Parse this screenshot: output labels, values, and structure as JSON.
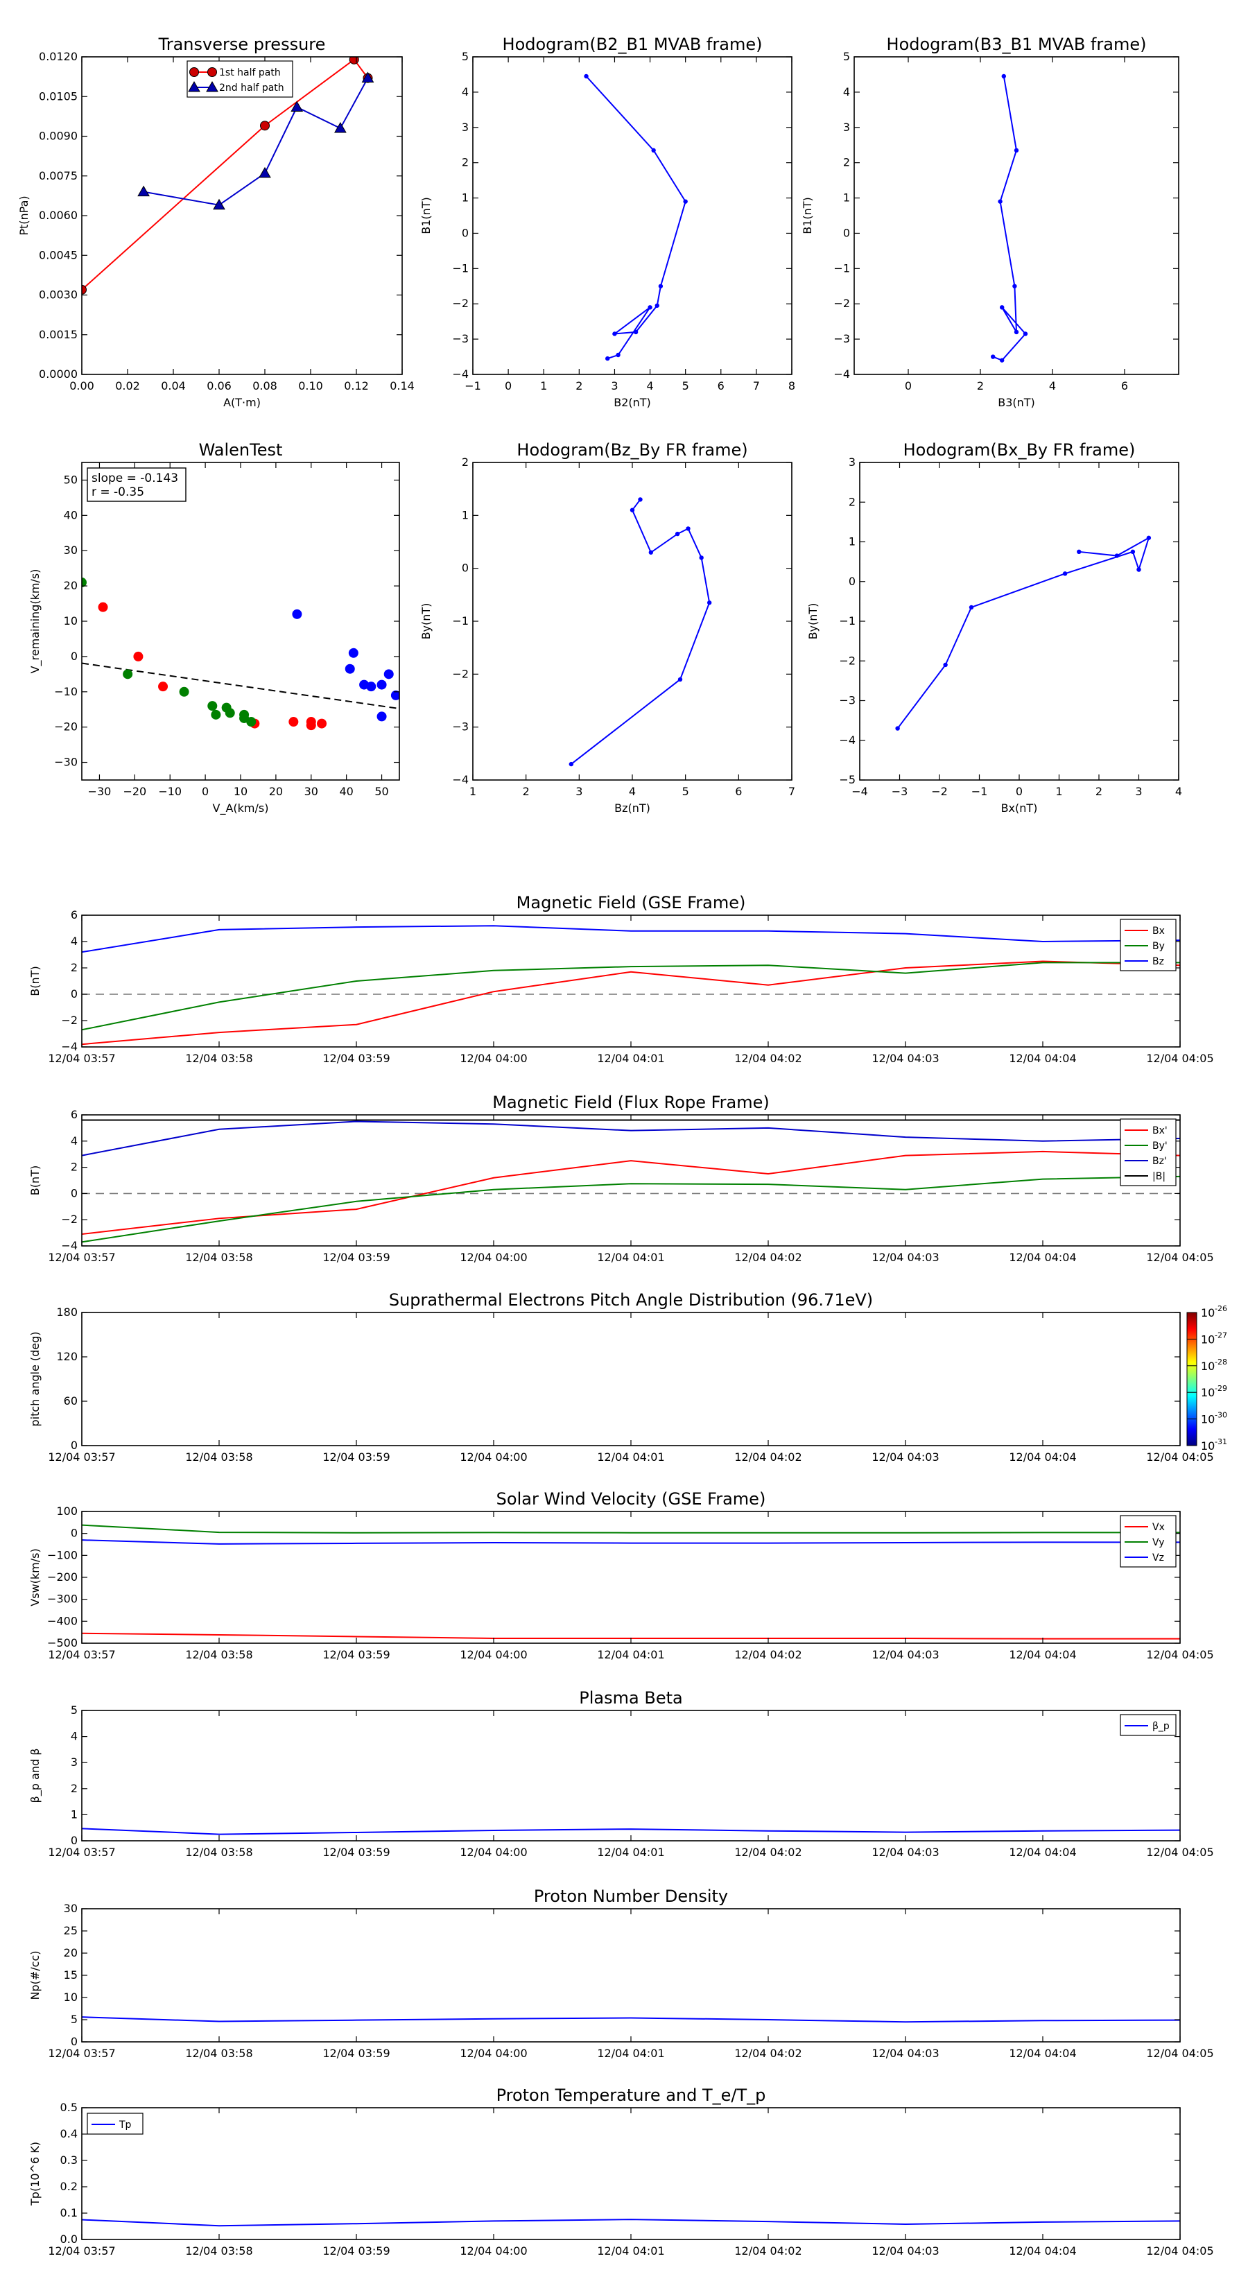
{
  "figure_title": "",
  "chart_data": [
    {
      "id": "tp",
      "type": "line",
      "title": "Transverse pressure",
      "xlabel": "A(T·m)",
      "ylabel": "Pt(nPa)",
      "xlim": [
        0.0,
        0.14
      ],
      "ylim": [
        0.0,
        0.012
      ],
      "xticks": [
        0.0,
        0.02,
        0.04,
        0.06,
        0.08,
        0.1,
        0.12,
        0.14
      ],
      "xticklabels": [
        "0.00",
        "0.02",
        "0.04",
        "0.06",
        "0.08",
        "0.10",
        "0.12",
        "0.14"
      ],
      "yticks": [
        0.0,
        0.0015,
        0.003,
        0.0045,
        0.006,
        0.0075,
        0.009,
        0.0105,
        0.012
      ],
      "yticklabels": [
        "0.0000",
        "0.0015",
        "0.0030",
        "0.0045",
        "0.0060",
        "0.0075",
        "0.0090",
        "0.0105",
        "0.0120"
      ],
      "legend": "top-center",
      "series": [
        {
          "name": "1st half path",
          "color": "#ff0000",
          "marker": "circle",
          "markercolor": "#cc0000",
          "x": [
            0.0,
            0.08,
            0.119,
            0.125
          ],
          "y": [
            0.0032,
            0.0094,
            0.0119,
            0.0112
          ]
        },
        {
          "name": "2nd half path",
          "color": "#0000cc",
          "marker": "triangle",
          "markercolor": "#0000aa",
          "x": [
            0.027,
            0.06,
            0.08,
            0.094,
            0.113,
            0.125
          ],
          "y": [
            0.0069,
            0.0064,
            0.0076,
            0.0101,
            0.0093,
            0.0112
          ]
        }
      ]
    },
    {
      "id": "h1",
      "type": "line",
      "title": "Hodogram(B2_B1 MVAB frame)",
      "xlabel": "B2(nT)",
      "ylabel": "B1(nT)",
      "xlim": [
        -1,
        8
      ],
      "ylim": [
        -4,
        5
      ],
      "xticks": [
        -1,
        0,
        1,
        2,
        3,
        4,
        5,
        6,
        7,
        8
      ],
      "yticks": [
        -4,
        -3,
        -2,
        -1,
        0,
        1,
        2,
        3,
        4,
        5
      ],
      "series": [
        {
          "name": "",
          "color": "#0000ff",
          "marker": "dot",
          "x": [
            2.2,
            4.1,
            5.0,
            4.3,
            4.2,
            3.6,
            3.0,
            4.0,
            3.1,
            2.8
          ],
          "y": [
            4.45,
            2.35,
            0.9,
            -1.5,
            -2.05,
            -2.8,
            -2.85,
            -2.1,
            -3.45,
            -3.55
          ]
        }
      ]
    },
    {
      "id": "h2",
      "type": "line",
      "title": "Hodogram(B3_B1 MVAB frame)",
      "xlabel": "B3(nT)",
      "ylabel": "B1(nT)",
      "xlim": [
        -1.5,
        7.5
      ],
      "ylim": [
        -4,
        5
      ],
      "xticks": [
        0,
        2,
        4,
        6
      ],
      "yticks": [
        -4,
        -3,
        -2,
        -1,
        0,
        1,
        2,
        3,
        4,
        5
      ],
      "series": [
        {
          "name": "",
          "color": "#0000ff",
          "marker": "dot",
          "x": [
            2.65,
            3.0,
            2.55,
            2.95,
            3.0,
            2.6,
            3.25,
            2.6,
            2.35
          ],
          "y": [
            4.45,
            2.35,
            0.9,
            -1.5,
            -2.8,
            -2.1,
            -2.85,
            -3.6,
            -3.5
          ]
        }
      ]
    },
    {
      "id": "walen",
      "type": "scatter",
      "title": "WalenTest",
      "xlabel": "V_A(km/s)",
      "ylabel": "V_remaining(km/s)",
      "xlim": [
        -35,
        55
      ],
      "ylim": [
        -35,
        55
      ],
      "xticks": [
        -30,
        -20,
        -10,
        0,
        10,
        20,
        30,
        40,
        50
      ],
      "yticks": [
        -30,
        -20,
        -10,
        0,
        10,
        20,
        30,
        40,
        50
      ],
      "annotation": [
        "slope = -0.143",
        "r = -0.35"
      ],
      "fit": {
        "slope": -0.143,
        "intercept": -6.9,
        "color": "#000000",
        "dashed": true
      },
      "series": [
        {
          "name": "",
          "color": "#0000ff",
          "x": [
            26,
            41,
            42,
            45,
            47,
            50,
            50,
            52,
            54
          ],
          "y": [
            12,
            -3.5,
            1,
            -8,
            -8.5,
            -8,
            -17,
            -5,
            -11
          ]
        },
        {
          "name": "",
          "color": "#ff0000",
          "x": [
            -29,
            -19,
            -12,
            14,
            25,
            30,
            30,
            33
          ],
          "y": [
            14,
            0,
            -8.5,
            -19,
            -18.5,
            -18.5,
            -19.5,
            -19
          ]
        },
        {
          "name": "",
          "color": "#008000",
          "x": [
            -35,
            -22,
            -6,
            2,
            3,
            6,
            7,
            11,
            11,
            13
          ],
          "y": [
            21,
            -5,
            -10,
            -14,
            -16.5,
            -14.5,
            -16,
            -17.5,
            -16.5,
            -18.5
          ]
        }
      ]
    },
    {
      "id": "h3",
      "type": "line",
      "title": "Hodogram(Bz_By FR frame)",
      "xlabel": "Bz(nT)",
      "ylabel": "By(nT)",
      "xlim": [
        1,
        7
      ],
      "ylim": [
        -4,
        2
      ],
      "xticks": [
        1,
        2,
        3,
        4,
        5,
        6,
        7
      ],
      "yticks": [
        -4,
        -3,
        -2,
        -1,
        0,
        1,
        2
      ],
      "series": [
        {
          "name": "",
          "color": "#0000ff",
          "marker": "dot",
          "x": [
            2.85,
            4.9,
            5.45,
            5.3,
            5.05,
            4.85,
            4.35,
            4.0,
            4.15
          ],
          "y": [
            -3.7,
            -2.1,
            -0.65,
            0.2,
            0.75,
            0.65,
            0.3,
            1.1,
            1.3
          ]
        }
      ]
    },
    {
      "id": "h4",
      "type": "line",
      "title": "Hodogram(Bx_By FR frame)",
      "xlabel": "Bx(nT)",
      "ylabel": "By(nT)",
      "xlim": [
        -4,
        4
      ],
      "ylim": [
        -5,
        3
      ],
      "xticks": [
        -4,
        -3,
        -2,
        -1,
        0,
        1,
        2,
        3,
        4
      ],
      "yticks": [
        -5,
        -4,
        -3,
        -2,
        -1,
        0,
        1,
        2,
        3
      ],
      "series": [
        {
          "name": "",
          "color": "#0000ff",
          "marker": "dot",
          "x": [
            -3.05,
            -1.85,
            -1.2,
            1.15,
            2.85,
            3.0,
            3.25,
            2.45,
            1.5
          ],
          "y": [
            -3.7,
            -2.1,
            -0.65,
            0.2,
            0.75,
            0.3,
            1.1,
            0.65,
            0.75
          ]
        }
      ]
    },
    {
      "id": "mag_gse",
      "type": "line",
      "title": "Magnetic Field (GSE Frame)",
      "xlabel": "",
      "ylabel": "B(nT)",
      "xlim": [
        0,
        8
      ],
      "ylim": [
        -4,
        6
      ],
      "xticklabels": [
        "12/04 03:57",
        "12/04 03:58",
        "12/04 03:59",
        "12/04 04:00",
        "12/04 04:01",
        "12/04 04:02",
        "12/04 04:03",
        "12/04 04:04",
        "12/04 04:05"
      ],
      "yticks": [
        -4,
        -2,
        0,
        2,
        4,
        6
      ],
      "zero_line": true,
      "legend": "top-right",
      "series": [
        {
          "name": "Bx",
          "color": "#ff0000",
          "x": [
            0,
            1,
            2,
            3,
            4,
            5,
            6,
            7,
            8
          ],
          "y": [
            -3.8,
            -2.9,
            -2.3,
            0.2,
            1.7,
            0.7,
            2.0,
            2.5,
            2.2
          ]
        },
        {
          "name": "By",
          "color": "#008000",
          "x": [
            0,
            1,
            2,
            3,
            4,
            5,
            6,
            7,
            8
          ],
          "y": [
            -2.7,
            -0.6,
            1.0,
            1.8,
            2.1,
            2.2,
            1.6,
            2.4,
            2.4
          ]
        },
        {
          "name": "Bz",
          "color": "#0000ff",
          "x": [
            0,
            1,
            2,
            3,
            4,
            5,
            6,
            7,
            8
          ],
          "y": [
            3.2,
            4.9,
            5.1,
            5.2,
            4.8,
            4.8,
            4.6,
            4.0,
            4.1
          ]
        }
      ]
    },
    {
      "id": "mag_fr",
      "type": "line",
      "title": "Magnetic Field (Flux Rope Frame)",
      "xlabel": "",
      "ylabel": "B(nT)",
      "xlim": [
        0,
        8
      ],
      "ylim": [
        -4,
        6
      ],
      "xticklabels": [
        "12/04 03:57",
        "12/04 03:58",
        "12/04 03:59",
        "12/04 04:00",
        "12/04 04:01",
        "12/04 04:02",
        "12/04 04:03",
        "12/04 04:04",
        "12/04 04:05"
      ],
      "yticks": [
        -4,
        -2,
        0,
        2,
        4,
        6
      ],
      "zero_line": true,
      "legend": "top-right",
      "series": [
        {
          "name": "Bx'",
          "color": "#ff0000",
          "x": [
            0,
            1,
            2,
            3,
            4,
            5,
            6,
            7,
            8
          ],
          "y": [
            -3.1,
            -1.9,
            -1.2,
            1.2,
            2.5,
            1.5,
            2.9,
            3.2,
            2.9
          ]
        },
        {
          "name": "By'",
          "color": "#008000",
          "x": [
            0,
            1,
            2,
            3,
            4,
            5,
            6,
            7,
            8
          ],
          "y": [
            -3.7,
            -2.1,
            -0.6,
            0.3,
            0.75,
            0.7,
            0.3,
            1.1,
            1.3
          ]
        },
        {
          "name": "Bz'",
          "color": "#0000cc",
          "x": [
            0,
            1,
            2,
            3,
            4,
            5,
            6,
            7,
            8
          ],
          "y": [
            2.9,
            4.9,
            5.5,
            5.3,
            4.8,
            5.0,
            4.3,
            4.0,
            4.2
          ]
        },
        {
          "name": "|B|",
          "color": "#000000",
          "x": [
            0,
            1,
            2,
            3,
            4,
            5,
            6,
            7,
            8
          ],
          "y": [
            5.6,
            5.6,
            5.6,
            5.6,
            5.6,
            5.6,
            5.6,
            5.6,
            5.6
          ]
        }
      ]
    },
    {
      "id": "pad",
      "type": "heatmap",
      "title": "Suprathermal Electrons Pitch Angle Distribution (96.71eV)",
      "xlabel": "",
      "ylabel": "pitch angle (deg)",
      "xlim": [
        0,
        8
      ],
      "ylim": [
        0,
        180
      ],
      "xticklabels": [
        "12/04 03:57",
        "12/04 03:58",
        "12/04 03:59",
        "12/04 04:00",
        "12/04 04:01",
        "12/04 04:02",
        "12/04 04:03",
        "12/04 04:04",
        "12/04 04:05"
      ],
      "yticks": [
        0,
        60,
        120,
        180
      ],
      "colorbar": {
        "labels": [
          "10",
          "10",
          "10",
          "10",
          "10",
          "10"
        ],
        "exponents": [
          "-26",
          "-27",
          "-28",
          "-29",
          "-30",
          "-31"
        ]
      },
      "series": []
    },
    {
      "id": "vsw",
      "type": "line",
      "title": "Solar Wind Velocity (GSE Frame)",
      "xlabel": "",
      "ylabel": "Vsw(km/s)",
      "xlim": [
        0,
        8
      ],
      "ylim": [
        -500,
        100
      ],
      "xticklabels": [
        "12/04 03:57",
        "12/04 03:58",
        "12/04 03:59",
        "12/04 04:00",
        "12/04 04:01",
        "12/04 04:02",
        "12/04 04:03",
        "12/04 04:04",
        "12/04 04:05"
      ],
      "yticks": [
        -500,
        -400,
        -300,
        -200,
        -100,
        0,
        100
      ],
      "yticklabels": [
        "−500",
        "−400",
        "−300",
        "−200",
        "−100",
        "0",
        "100"
      ],
      "legend": "top-right",
      "series": [
        {
          "name": "Vx",
          "color": "#ff0000",
          "x": [
            0,
            1,
            2,
            3,
            4,
            5,
            6,
            7,
            8
          ],
          "y": [
            -455,
            -462,
            -470,
            -478,
            -478,
            -478,
            -478,
            -480,
            -480
          ]
        },
        {
          "name": "Vy",
          "color": "#008000",
          "x": [
            0,
            1,
            2,
            3,
            4,
            5,
            6,
            7,
            8
          ],
          "y": [
            38,
            5,
            3,
            4,
            3,
            3,
            3,
            4,
            4
          ]
        },
        {
          "name": "Vz",
          "color": "#0000ff",
          "x": [
            0,
            1,
            2,
            3,
            4,
            5,
            6,
            7,
            8
          ],
          "y": [
            -30,
            -48,
            -45,
            -42,
            -44,
            -44,
            -42,
            -40,
            -40
          ]
        }
      ]
    },
    {
      "id": "beta",
      "type": "line",
      "title": "Plasma Beta",
      "xlabel": "",
      "ylabel": "β_p and β",
      "xlim": [
        0,
        8
      ],
      "ylim": [
        0,
        5
      ],
      "xticklabels": [
        "12/04 03:57",
        "12/04 03:58",
        "12/04 03:59",
        "12/04 04:00",
        "12/04 04:01",
        "12/04 04:02",
        "12/04 04:03",
        "12/04 04:04",
        "12/04 04:05"
      ],
      "yticks": [
        0,
        1,
        2,
        3,
        4,
        5
      ],
      "legend": "top-right",
      "series": [
        {
          "name": "β_p",
          "color": "#0000ff",
          "x": [
            0,
            1,
            2,
            3,
            4,
            5,
            6,
            7,
            8
          ],
          "y": [
            0.47,
            0.25,
            0.32,
            0.4,
            0.45,
            0.38,
            0.33,
            0.38,
            0.41
          ]
        }
      ]
    },
    {
      "id": "np",
      "type": "line",
      "title": "Proton Number Density",
      "xlabel": "",
      "ylabel": "Np(#/cc)",
      "xlim": [
        0,
        8
      ],
      "ylim": [
        0,
        30
      ],
      "xticklabels": [
        "12/04 03:57",
        "12/04 03:58",
        "12/04 03:59",
        "12/04 04:00",
        "12/04 04:01",
        "12/04 04:02",
        "12/04 04:03",
        "12/04 04:04",
        "12/04 04:05"
      ],
      "yticks": [
        0,
        5,
        10,
        15,
        20,
        25,
        30
      ],
      "series": [
        {
          "name": "",
          "color": "#0000ff",
          "x": [
            0,
            1,
            2,
            3,
            4,
            5,
            6,
            7,
            8
          ],
          "y": [
            5.6,
            4.6,
            4.9,
            5.2,
            5.4,
            5.0,
            4.5,
            4.8,
            4.9
          ]
        }
      ]
    },
    {
      "id": "tp_temp",
      "type": "line",
      "title": "Proton Temperature and T_e/T_p",
      "xlabel": "",
      "ylabel": "Tp(10^6 K)",
      "xlim": [
        0,
        8
      ],
      "ylim": [
        0,
        0.5
      ],
      "xticklabels": [
        "12/04 03:57",
        "12/04 03:58",
        "12/04 03:59",
        "12/04 04:00",
        "12/04 04:01",
        "12/04 04:02",
        "12/04 04:03",
        "12/04 04:04",
        "12/04 04:05"
      ],
      "yticks": [
        0,
        0.1,
        0.2,
        0.3,
        0.4,
        0.5
      ],
      "yticklabels": [
        "0.0",
        "0.1",
        "0.2",
        "0.3",
        "0.4",
        "0.5"
      ],
      "legend": "top-left",
      "series": [
        {
          "name": "Tp",
          "color": "#0000ff",
          "x": [
            0,
            1,
            2,
            3,
            4,
            5,
            6,
            7,
            8
          ],
          "y": [
            0.075,
            0.052,
            0.06,
            0.07,
            0.076,
            0.068,
            0.058,
            0.066,
            0.07
          ]
        }
      ]
    }
  ]
}
